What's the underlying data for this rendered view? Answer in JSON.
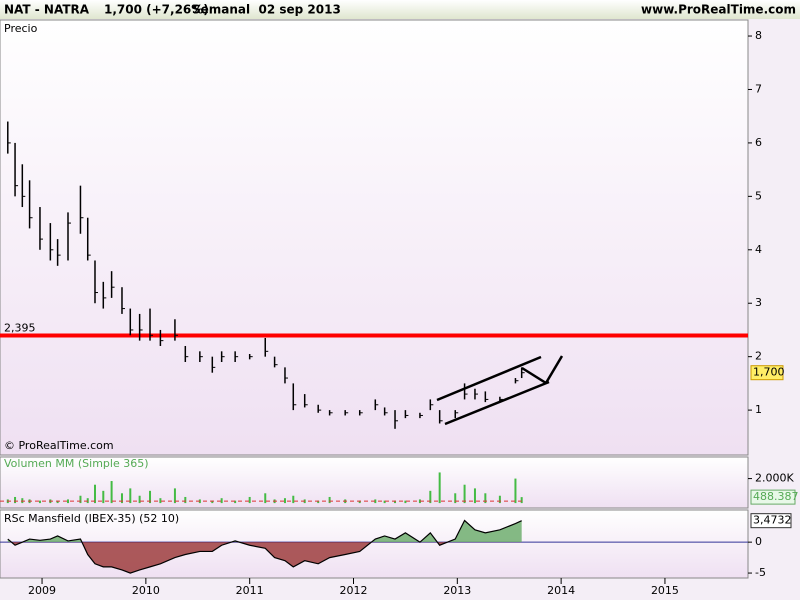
{
  "header": {
    "symbol": "NAT - NATRA",
    "change": "1,700 (+7,26%)",
    "period": "Semanal  02 sep 2013",
    "site": "www.ProRealTime.com",
    "copyright": "© ProRealTime.com"
  },
  "chart_data": [
    {
      "type": "ohlc",
      "title": "Precio",
      "x": [
        2008.67,
        2008.74,
        2008.81,
        2008.88,
        2008.98,
        2009.08,
        2009.15,
        2009.25,
        2009.37,
        2009.44,
        2009.51,
        2009.59,
        2009.67,
        2009.77,
        2009.85,
        2009.94,
        2010.04,
        2010.14,
        2010.28,
        2010.38,
        2010.52,
        2010.64,
        2010.73,
        2010.86,
        2011.0,
        2011.15,
        2011.24,
        2011.34,
        2011.42,
        2011.53,
        2011.66,
        2011.77,
        2011.92,
        2012.06,
        2012.21,
        2012.3,
        2012.4,
        2012.5,
        2012.64,
        2012.74,
        2012.83,
        2012.98,
        2013.07,
        2013.17,
        2013.27,
        2013.41,
        2013.56,
        2013.62
      ],
      "high": [
        6.4,
        6.0,
        5.6,
        5.3,
        4.8,
        4.5,
        4.2,
        4.7,
        5.2,
        4.6,
        3.8,
        3.4,
        3.6,
        3.3,
        2.9,
        2.8,
        2.9,
        2.5,
        2.7,
        2.2,
        2.1,
        2.0,
        2.1,
        2.1,
        2.05,
        2.35,
        2.0,
        1.8,
        1.5,
        1.3,
        1.1,
        1.0,
        1.0,
        1.0,
        1.2,
        1.05,
        1.0,
        1.0,
        0.95,
        1.2,
        1.0,
        1.0,
        1.5,
        1.4,
        1.35,
        1.25,
        1.6,
        1.8
      ],
      "low": [
        5.8,
        5.0,
        4.8,
        4.4,
        4.0,
        3.8,
        3.7,
        3.8,
        4.3,
        3.8,
        3.0,
        2.9,
        3.1,
        2.8,
        2.4,
        2.3,
        2.3,
        2.2,
        2.3,
        1.9,
        1.9,
        1.7,
        1.9,
        1.9,
        1.95,
        2.0,
        1.8,
        1.5,
        1.0,
        1.05,
        0.95,
        0.9,
        0.9,
        0.9,
        1.0,
        0.9,
        0.65,
        0.85,
        0.85,
        1.0,
        0.75,
        0.85,
        1.2,
        1.2,
        1.15,
        1.15,
        1.5,
        1.6
      ],
      "close": [
        6.0,
        5.2,
        5.0,
        4.6,
        4.2,
        4.0,
        3.9,
        4.5,
        4.6,
        3.9,
        3.2,
        3.1,
        3.3,
        2.9,
        2.5,
        2.5,
        2.4,
        2.3,
        2.4,
        2.0,
        2.0,
        1.8,
        2.0,
        2.0,
        2.0,
        2.1,
        1.85,
        1.6,
        1.1,
        1.1,
        1.0,
        0.95,
        0.95,
        0.95,
        1.1,
        0.95,
        0.8,
        0.9,
        0.9,
        1.1,
        0.8,
        0.95,
        1.3,
        1.3,
        1.2,
        1.2,
        1.55,
        1.7
      ],
      "color": "#000000",
      "xlim": [
        2008.595,
        2015.8
      ],
      "xticks": [
        2009,
        2010,
        2011,
        2012,
        2013,
        2014,
        2015
      ],
      "ylim": [
        0.16,
        8.3
      ],
      "yticks": [
        1,
        2,
        3,
        4,
        5,
        6,
        7,
        8
      ],
      "level": {
        "value": 2.395,
        "label": "2,395"
      },
      "level_color": "#ff0000",
      "last_price": {
        "value": 1.7,
        "label": "1,700"
      }
    },
    {
      "type": "bar",
      "title": "Volumen MM (Simple 365)",
      "color": "#44bb44",
      "values": [
        300000,
        500000,
        400000,
        300000,
        200000,
        300000,
        200000,
        300000,
        600000,
        400000,
        1500000,
        1000000,
        1800000,
        800000,
        1200000,
        600000,
        1000000,
        400000,
        1200000,
        500000,
        300000,
        200000,
        400000,
        200000,
        500000,
        800000,
        300000,
        400000,
        600000,
        300000,
        200000,
        500000,
        300000,
        200000,
        300000,
        200000,
        200000,
        200000,
        300000,
        1000000,
        2500000,
        800000,
        1500000,
        1200000,
        800000,
        600000,
        2000000,
        488387
      ],
      "average": 160000,
      "average_color": "#dd3333",
      "ylim": [
        -400000,
        3760000
      ],
      "yticks": [
        {
          "value": 2000000,
          "label": "2.000K"
        }
      ],
      "last_value": {
        "value": 488387,
        "label": "488.387"
      }
    },
    {
      "type": "area",
      "title": "RSc Mansfield (IBEX-35) (52 10)",
      "values": [
        0.5,
        -0.5,
        0,
        0.5,
        0.3,
        0.5,
        1,
        0.2,
        0.5,
        -2,
        -3.5,
        -4,
        -4,
        -4.5,
        -5,
        -4.5,
        -4,
        -3.5,
        -2.5,
        -2,
        -1.5,
        -1.5,
        -0.5,
        0.2,
        -0.5,
        -1,
        -2.5,
        -3,
        -4,
        -3,
        -3.5,
        -2.5,
        -2,
        -1.5,
        0.5,
        1,
        0.5,
        1.5,
        0,
        1.5,
        -0.5,
        0.5,
        3.5,
        2,
        1.5,
        2,
        3,
        3.4732
      ],
      "ylim": [
        -5.8,
        5.2
      ],
      "yticks": [
        -5,
        0
      ],
      "last_value": {
        "value": 3.4732,
        "label": "3,4732"
      },
      "positive_color": "#66aa66",
      "negative_color": "#993333"
    }
  ]
}
